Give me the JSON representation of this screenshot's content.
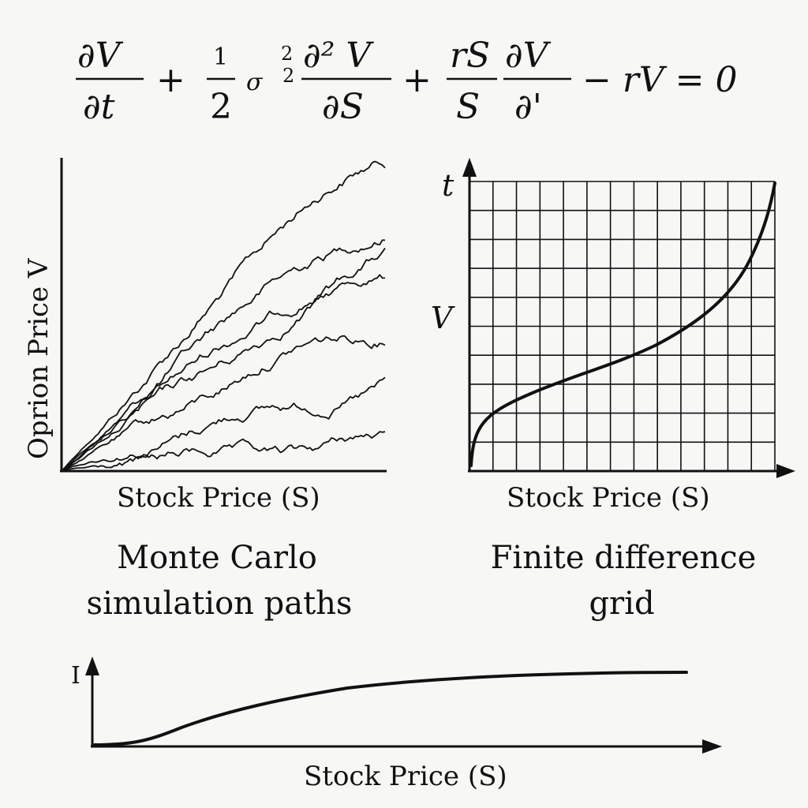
{
  "equation": {
    "dV": "∂V",
    "dt": "∂t",
    "plus1": "+",
    "half_num": "1",
    "half_den": "2",
    "sigma": "σ",
    "sq_top": "2",
    "sq_bot": "2",
    "d2V": "∂² V",
    "dS": "∂S",
    "plus2": "+",
    "rS": "rS",
    "S": "S",
    "dV2": "∂V",
    "dprime": "∂'",
    "tail": "− rV = 0"
  },
  "monte_carlo": {
    "ylabel": "Oprion Price V",
    "xlabel": "Stock Price (S)",
    "caption_line1": "Monte Carlo",
    "caption_line2": "simulation paths",
    "path_count": 7
  },
  "finite_difference": {
    "y_top_label": "t",
    "y_mid_label": "V",
    "xlabel": "Stock Price (S)",
    "caption_line1": "Finite difference",
    "caption_line2": "grid",
    "grid_columns": 13,
    "grid_rows": 10
  },
  "bottom_chart": {
    "ylabel": "I",
    "xlabel": "Stock Price (S)"
  }
}
